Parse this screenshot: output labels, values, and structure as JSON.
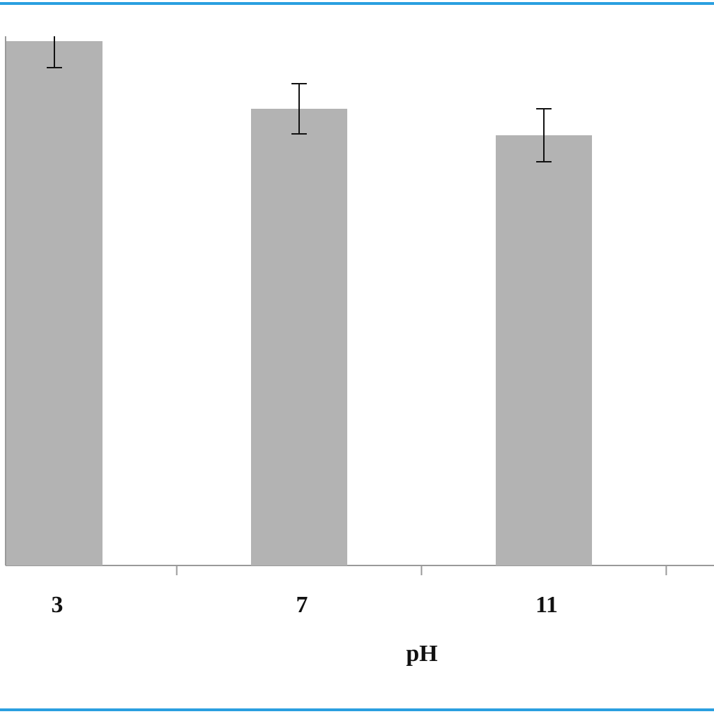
{
  "chart_data": {
    "type": "bar",
    "x_label": "pH",
    "categories": [
      "3",
      "7",
      "11"
    ],
    "values": [
      75.2,
      65.5,
      61.7
    ],
    "errors": [
      3.8,
      3.6,
      3.8
    ],
    "color": "#b3b3b3"
  }
}
